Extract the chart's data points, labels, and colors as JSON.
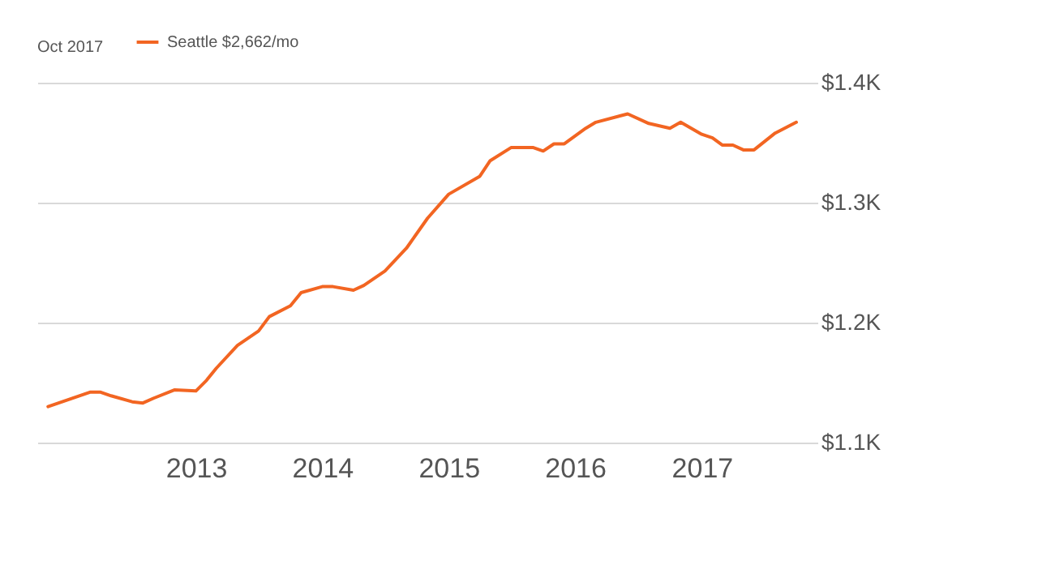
{
  "chart_data": {
    "type": "line",
    "title": "Oct 2017",
    "x": [
      "2011-11",
      "2012-03",
      "2012-04",
      "2012-05",
      "2012-07",
      "2012-08",
      "2012-09",
      "2012-11",
      "2013-01",
      "2013-02",
      "2013-03",
      "2013-05",
      "2013-07",
      "2013-08",
      "2013-10",
      "2013-11",
      "2014-01",
      "2014-02",
      "2014-04",
      "2014-05",
      "2014-07",
      "2014-09",
      "2014-11",
      "2015-01",
      "2015-04",
      "2015-05",
      "2015-07",
      "2015-09",
      "2015-10",
      "2015-11",
      "2015-12",
      "2016-02",
      "2016-03",
      "2016-06",
      "2016-08",
      "2016-10",
      "2016-11",
      "2017-01",
      "2017-02",
      "2017-03",
      "2017-04",
      "2017-05",
      "2017-06",
      "2017-08",
      "2017-10"
    ],
    "series": [
      {
        "name": "Seattle $2,662/mo",
        "color": "#f26522",
        "values": [
          1130,
          1142,
          1142,
          1139,
          1134,
          1133,
          1137,
          1144,
          1143,
          1152,
          1162,
          1181,
          1193,
          1205,
          1214,
          1225,
          1230,
          1230,
          1227,
          1231,
          1243,
          1262,
          1287,
          1307,
          1322,
          1335,
          1346,
          1346,
          1343,
          1349,
          1349,
          1362,
          1367,
          1374,
          1366,
          1362,
          1367,
          1357,
          1354,
          1348,
          1348,
          1344,
          1344,
          1358,
          1367
        ]
      }
    ],
    "xlim": [
      "2011-10",
      "2017-12"
    ],
    "xticks": [
      "2013",
      "2014",
      "2015",
      "2016",
      "2017"
    ],
    "ylim": [
      1100,
      1400
    ],
    "yticks": [
      {
        "value": 1100,
        "label": "$1.1K"
      },
      {
        "value": 1200,
        "label": "$1.2K"
      },
      {
        "value": 1300,
        "label": "$1.3K"
      },
      {
        "value": 1400,
        "label": "$1.4K"
      }
    ],
    "grid": "y",
    "legend": "top left",
    "marker": "none",
    "line_style": "solid"
  }
}
